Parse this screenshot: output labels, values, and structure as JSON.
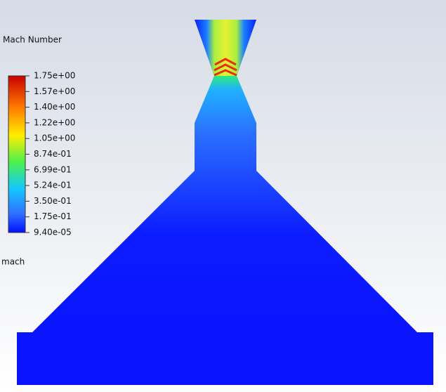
{
  "legend": {
    "title": "Mach Number",
    "labels": [
      "1.75e+00",
      "1.57e+00",
      "1.40e+00",
      "1.22e+00",
      "1.05e+00",
      "8.74e-01",
      "6.99e-01",
      "5.24e-01",
      "3.50e-01",
      "1.75e-01",
      "9.40e-05"
    ]
  },
  "surface_label": "mach"
}
